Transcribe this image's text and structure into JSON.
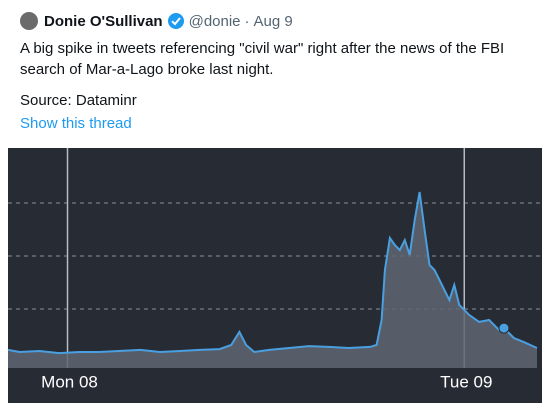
{
  "tweet": {
    "name": "Donie O'Sullivan",
    "handle": "@donie",
    "separator": "·",
    "date": "Aug 9",
    "text": "A big spike in tweets referencing \"civil war\" right after the news of the FBI search of Mar-a-Lago broke last night.",
    "source": "Source: Dataminr",
    "thread_link": "Show this thread"
  },
  "chart_data": {
    "type": "area",
    "x": [
      -3.6,
      -2.9,
      -1.7,
      -0.5,
      0.7,
      1.9,
      3.1,
      4.4,
      5.6,
      6.8,
      8.0,
      9.2,
      9.9,
      10.4,
      10.8,
      11.3,
      12.2,
      13.4,
      14.6,
      15.8,
      17.0,
      18.3,
      18.7,
      19.0,
      19.2,
      19.5,
      19.8,
      20.1,
      20.4,
      20.7,
      21.0,
      21.3,
      21.6,
      21.9,
      22.2,
      22.5,
      22.8,
      23.1,
      23.4,
      23.7,
      24.3,
      24.9,
      25.5,
      26.1,
      26.4,
      27.0,
      27.6,
      28.4
    ],
    "values": [
      5.7,
      4.7,
      5.2,
      4.2,
      4.7,
      4.7,
      5.2,
      5.7,
      4.7,
      5.2,
      5.7,
      6.1,
      8.0,
      14.2,
      8.0,
      4.7,
      5.7,
      6.6,
      7.5,
      7.1,
      6.6,
      7.1,
      8.0,
      19.8,
      43.4,
      58.5,
      55.2,
      52.8,
      57.5,
      50.5,
      67.0,
      80.2,
      62.3,
      45.8,
      43.4,
      38.7,
      34.0,
      29.2,
      36.3,
      26.9,
      22.2,
      18.9,
      19.8,
      15.1,
      16.0,
      11.3,
      9.4,
      6.6
    ],
    "highlight_index": 44,
    "line_color": "#4a9fe0",
    "fill_color": "#5f6672",
    "xlim": [
      -3.6,
      28.4
    ],
    "xticks": [
      {
        "value": 0,
        "label": "Mon 08"
      },
      {
        "value": 24,
        "label": "Tue 09"
      }
    ],
    "ylim": [
      0,
      100
    ],
    "yticks": [
      25,
      50,
      75
    ],
    "grid": true
  }
}
